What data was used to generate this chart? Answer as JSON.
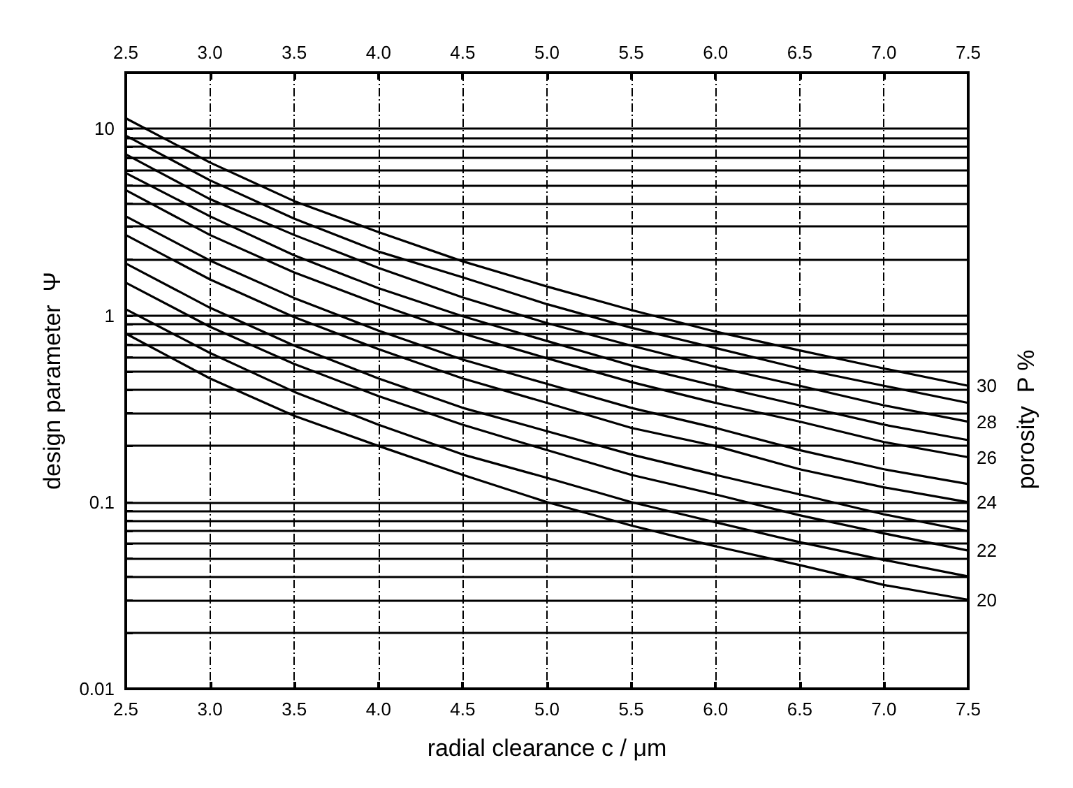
{
  "chart_data": {
    "type": "line",
    "xlabel": "radial clearance c / μm",
    "ylabel": "design parameter  Ψ",
    "annotations": [
      "porosity  P %"
    ],
    "x": [
      2.5,
      3.0,
      3.5,
      4.0,
      4.5,
      5.0,
      5.5,
      6.0,
      6.5,
      7.0,
      7.5
    ],
    "series": [
      {
        "name": "30",
        "color": "#000000",
        "values": [
          11.4,
          6.6,
          4.1,
          2.8,
          1.95,
          1.43,
          1.07,
          0.82,
          0.65,
          0.52,
          0.42
        ]
      },
      {
        "color": "#000000",
        "values": [
          9.2,
          5.3,
          3.3,
          2.2,
          1.6,
          1.15,
          0.86,
          0.67,
          0.52,
          0.42,
          0.34
        ]
      },
      {
        "name": "28",
        "color": "#000000",
        "values": [
          7.3,
          4.2,
          2.7,
          1.8,
          1.25,
          0.91,
          0.69,
          0.53,
          0.42,
          0.33,
          0.27
        ]
      },
      {
        "color": "#000000",
        "values": [
          5.8,
          3.4,
          2.1,
          1.4,
          0.99,
          0.73,
          0.54,
          0.42,
          0.33,
          0.26,
          0.215
        ]
      },
      {
        "name": "26",
        "color": "#000000",
        "values": [
          4.7,
          2.7,
          1.7,
          1.15,
          0.8,
          0.59,
          0.44,
          0.34,
          0.27,
          0.21,
          0.174
        ]
      },
      {
        "color": "#000000",
        "values": [
          3.4,
          1.97,
          1.24,
          0.83,
          0.58,
          0.43,
          0.32,
          0.25,
          0.19,
          0.15,
          0.125
        ]
      },
      {
        "name": "24",
        "color": "#000000",
        "values": [
          2.7,
          1.56,
          0.98,
          0.66,
          0.46,
          0.34,
          0.25,
          0.2,
          0.15,
          0.12,
          0.1
        ]
      },
      {
        "color": "#000000",
        "values": [
          1.9,
          1.1,
          0.69,
          0.46,
          0.32,
          0.24,
          0.18,
          0.14,
          0.11,
          0.086,
          0.07
        ]
      },
      {
        "name": "22",
        "color": "#000000",
        "values": [
          1.5,
          0.87,
          0.55,
          0.37,
          0.26,
          0.19,
          0.14,
          0.11,
          0.085,
          0.068,
          0.055
        ]
      },
      {
        "color": "#000000",
        "values": [
          1.08,
          0.63,
          0.39,
          0.26,
          0.18,
          0.135,
          0.1,
          0.078,
          0.061,
          0.049,
          0.04
        ]
      },
      {
        "name": "20",
        "color": "#000000",
        "values": [
          0.8,
          0.46,
          0.29,
          0.2,
          0.14,
          0.1,
          0.075,
          0.058,
          0.046,
          0.036,
          0.03
        ]
      }
    ],
    "log": "y",
    "xlim": [
      2.5,
      7.5
    ],
    "xticks": [
      {
        "value": 2.5,
        "label": "2.5"
      },
      {
        "value": 3,
        "label": "3.0"
      },
      {
        "value": 3.5,
        "label": "3.5"
      },
      {
        "value": 4,
        "label": "4.0"
      },
      {
        "value": 4.5,
        "label": "4.5"
      },
      {
        "value": 5,
        "label": "5.0"
      },
      {
        "value": 5.5,
        "label": "5.5"
      },
      {
        "value": 6,
        "label": "6.0"
      },
      {
        "value": 6.5,
        "label": "6.5"
      },
      {
        "value": 7,
        "label": "7.0"
      },
      {
        "value": 7.5,
        "label": "7.5"
      }
    ],
    "x2lim": [
      2.5,
      7.5
    ],
    "x2ticks": [
      {
        "value": 2.5,
        "label": "2.5"
      },
      {
        "value": 3,
        "label": "3.0"
      },
      {
        "value": 3.5,
        "label": "3.5"
      },
      {
        "value": 4,
        "label": "4.0"
      },
      {
        "value": 4.5,
        "label": "4.5"
      },
      {
        "value": 5,
        "label": "5.0"
      },
      {
        "value": 5.5,
        "label": "5.5"
      },
      {
        "value": 6,
        "label": "6.0"
      },
      {
        "value": 6.5,
        "label": "6.5"
      },
      {
        "value": 7,
        "label": "7.0"
      },
      {
        "value": 7.5,
        "label": "7.5"
      }
    ],
    "ylim": [
      0.01,
      20
    ],
    "yticks": [
      0.01,
      {
        "value": 0.02,
        "label": null
      },
      {
        "value": 0.03,
        "label": null
      },
      {
        "value": 0.04,
        "label": null
      },
      {
        "value": 0.05,
        "label": null
      },
      {
        "value": 0.06,
        "label": null
      },
      {
        "value": 0.07,
        "label": null
      },
      {
        "value": 0.08,
        "label": null
      },
      {
        "value": 0.09,
        "label": null
      },
      0.1,
      {
        "value": 0.2,
        "label": null
      },
      {
        "value": 0.3,
        "label": null
      },
      {
        "value": 0.4,
        "label": null
      },
      {
        "value": 0.5,
        "label": null
      },
      {
        "value": 0.6,
        "label": null
      },
      {
        "value": 0.7,
        "label": null
      },
      {
        "value": 0.8,
        "label": null
      },
      {
        "value": 0.9,
        "label": null
      },
      1,
      {
        "value": 2,
        "label": null
      },
      {
        "value": 3,
        "label": null
      },
      {
        "value": 4,
        "label": null
      },
      {
        "value": 5,
        "label": null
      },
      {
        "value": 6,
        "label": null
      },
      {
        "value": 7,
        "label": null
      },
      {
        "value": 8,
        "label": null
      },
      {
        "value": 9,
        "label": null
      },
      10
    ],
    "grid": true,
    "legend": false,
    "marker": "none",
    "line_style": "solid"
  }
}
